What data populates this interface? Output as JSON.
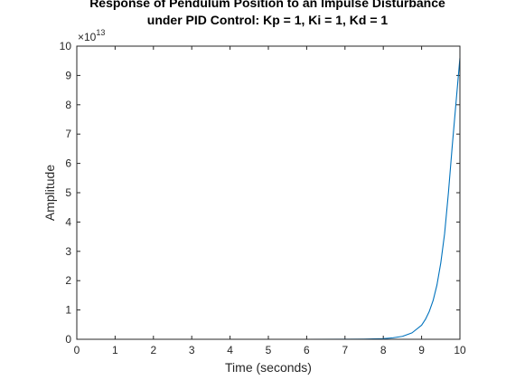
{
  "chart_data": {
    "type": "line",
    "title": [
      "Response of Pendulum Position to an Impulse Disturbance",
      "under PID Control: Kp = 1, Ki = 1, Kd = 1"
    ],
    "xlabel": "Time (seconds)",
    "ylabel": "Amplitude",
    "xlim": [
      0,
      10
    ],
    "ylim": [
      0,
      10
    ],
    "y_exponent_base": "×10",
    "y_exponent": "13",
    "xticks": [
      "0",
      "1",
      "2",
      "3",
      "4",
      "5",
      "6",
      "7",
      "8",
      "9",
      "10"
    ],
    "yticks": [
      "0",
      "1",
      "2",
      "3",
      "4",
      "5",
      "6",
      "7",
      "8",
      "9",
      "10"
    ],
    "grid": false,
    "legend": false,
    "series_color": "#0072bd",
    "series": [
      {
        "x": [
          0,
          1,
          2,
          3,
          4,
          5,
          6,
          7,
          7.5,
          8,
          8.25,
          8.5,
          8.75,
          9,
          9.1,
          9.2,
          9.3,
          9.4,
          9.5,
          9.6,
          9.7,
          9.8,
          9.9,
          10
        ],
        "y": [
          0,
          0,
          0,
          0,
          0,
          0,
          0,
          0.001,
          0.005,
          0.02,
          0.05,
          0.1,
          0.22,
          0.48,
          0.68,
          0.95,
          1.32,
          1.85,
          2.6,
          3.6,
          5.0,
          6.6,
          8.1,
          9.6
        ]
      }
    ]
  }
}
